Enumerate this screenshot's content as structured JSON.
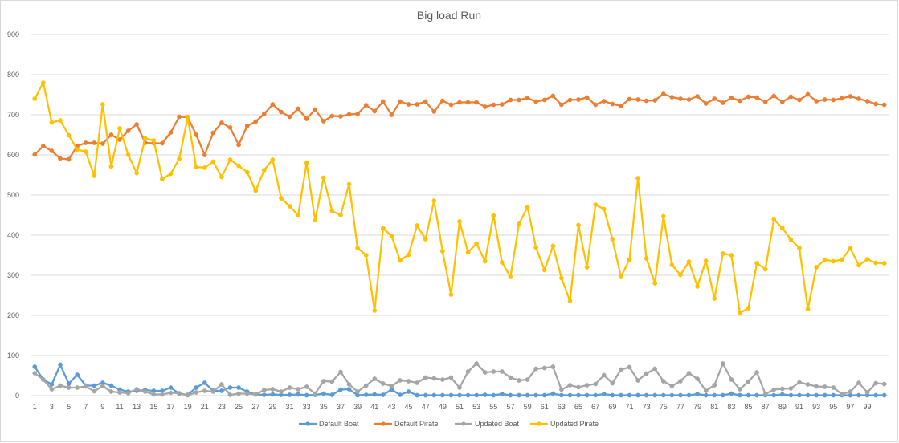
{
  "chart_data": {
    "type": "line",
    "title": "Big load Run",
    "xlabel": "",
    "ylabel": "",
    "ylim": [
      0,
      900
    ],
    "yticks": [
      0,
      100,
      200,
      300,
      400,
      500,
      600,
      700,
      800,
      900
    ],
    "x": [
      1,
      2,
      3,
      4,
      5,
      6,
      7,
      8,
      9,
      10,
      11,
      12,
      13,
      14,
      15,
      16,
      17,
      18,
      19,
      20,
      21,
      22,
      23,
      24,
      25,
      26,
      27,
      28,
      29,
      30,
      31,
      32,
      33,
      34,
      35,
      36,
      37,
      38,
      39,
      40,
      41,
      42,
      43,
      44,
      45,
      46,
      47,
      48,
      49,
      50,
      51,
      52,
      53,
      54,
      55,
      56,
      57,
      58,
      59,
      60,
      61,
      62,
      63,
      64,
      65,
      66,
      67,
      68,
      69,
      70,
      71,
      72,
      73,
      74,
      75,
      76,
      77,
      78,
      79,
      80,
      81,
      82,
      83,
      84,
      85,
      86,
      87,
      88,
      89,
      90,
      91,
      92,
      93,
      94,
      95,
      96,
      97,
      98,
      99,
      100,
      101
    ],
    "xtick_labels": [
      "1",
      "3",
      "5",
      "7",
      "9",
      "11",
      "13",
      "15",
      "17",
      "19",
      "21",
      "23",
      "25",
      "27",
      "29",
      "31",
      "33",
      "35",
      "37",
      "39",
      "41",
      "43",
      "45",
      "47",
      "49",
      "51",
      "53",
      "55",
      "57",
      "59",
      "61",
      "63",
      "65",
      "67",
      "69",
      "71",
      "73",
      "75",
      "77",
      "79",
      "81",
      "83",
      "85",
      "87",
      "89",
      "91",
      "93",
      "95",
      "97",
      "99"
    ],
    "grid": "horizontal",
    "legend_position": "bottom",
    "series": [
      {
        "name": "Default Boat",
        "color": "#5B9BD5",
        "values": [
          72,
          40,
          28,
          77,
          30,
          52,
          25,
          25,
          32,
          25,
          15,
          10,
          12,
          14,
          12,
          12,
          20,
          5,
          2,
          20,
          32,
          12,
          12,
          20,
          20,
          10,
          3,
          2,
          3,
          2,
          2,
          3,
          1,
          2,
          5,
          2,
          15,
          16,
          1,
          2,
          3,
          2,
          15,
          2,
          10,
          1,
          1,
          1,
          1,
          1,
          1,
          1,
          1,
          2,
          1,
          4,
          1,
          1,
          1,
          1,
          1,
          5,
          1,
          1,
          1,
          1,
          1,
          4,
          1,
          1,
          1,
          1,
          1,
          1,
          1,
          1,
          1,
          1,
          4,
          1,
          1,
          1,
          5,
          1,
          1,
          1,
          1,
          1,
          3,
          1,
          1,
          1,
          1,
          1,
          1,
          1,
          1,
          1,
          1,
          1,
          1
        ]
      },
      {
        "name": "Default Pirate",
        "color": "#ED7D31",
        "values": [
          601,
          622,
          610,
          591,
          589,
          622,
          630,
          630,
          628,
          650,
          638,
          660,
          676,
          630,
          629,
          629,
          656,
          695,
          694,
          650,
          600,
          655,
          680,
          668,
          625,
          672,
          683,
          702,
          726,
          707,
          695,
          715,
          690,
          713,
          684,
          697,
          696,
          701,
          702,
          724,
          709,
          733,
          700,
          733,
          726,
          726,
          733,
          708,
          735,
          725,
          731,
          731,
          731,
          720,
          725,
          726,
          737,
          737,
          742,
          733,
          737,
          747,
          725,
          737,
          738,
          743,
          725,
          734,
          727,
          722,
          739,
          738,
          735,
          736,
          752,
          744,
          740,
          738,
          746,
          728,
          740,
          730,
          742,
          735,
          745,
          743,
          732,
          747,
          732,
          745,
          737,
          751,
          734,
          738,
          737,
          741,
          746,
          740,
          734,
          727,
          725
        ]
      },
      {
        "name": "Updated Boat",
        "color": "#A5A5A5",
        "values": [
          56,
          40,
          16,
          25,
          20,
          20,
          23,
          11,
          24,
          10,
          8,
          6,
          16,
          10,
          3,
          3,
          7,
          6,
          1,
          8,
          12,
          10,
          28,
          2,
          5,
          5,
          3,
          14,
          16,
          10,
          20,
          16,
          22,
          5,
          36,
          35,
          59,
          28,
          10,
          25,
          42,
          30,
          24,
          38,
          36,
          32,
          45,
          43,
          40,
          45,
          20,
          60,
          80,
          58,
          60,
          60,
          45,
          38,
          40,
          67,
          69,
          72,
          15,
          26,
          21,
          26,
          29,
          51,
          31,
          65,
          71,
          38,
          55,
          67,
          36,
          24,
          36,
          56,
          42,
          12,
          26,
          80,
          40,
          16,
          35,
          58,
          4,
          15,
          17,
          18,
          33,
          28,
          23,
          22,
          20,
          4,
          10,
          32,
          8,
          31,
          29
        ]
      },
      {
        "name": "Updated Pirate",
        "color": "#FFC000",
        "values": [
          740,
          780,
          681,
          686,
          649,
          613,
          608,
          548,
          726,
          571,
          666,
          600,
          555,
          641,
          636,
          540,
          553,
          590,
          693,
          570,
          568,
          583,
          545,
          588,
          573,
          557,
          511,
          562,
          588,
          492,
          472,
          450,
          580,
          437,
          543,
          460,
          450,
          527,
          368,
          350,
          212,
          417,
          398,
          337,
          351,
          424,
          390,
          486,
          360,
          252,
          434,
          357,
          379,
          335,
          449,
          332,
          296,
          428,
          470,
          369,
          313,
          373,
          293,
          236,
          425,
          320,
          476,
          465,
          390,
          296,
          339,
          542,
          342,
          280,
          447,
          326,
          301,
          334,
          272,
          336,
          242,
          354,
          350,
          206,
          218,
          330,
          315,
          439,
          418,
          389,
          368,
          216,
          320,
          339,
          335,
          339,
          367,
          325,
          340,
          331,
          330
        ]
      }
    ]
  }
}
